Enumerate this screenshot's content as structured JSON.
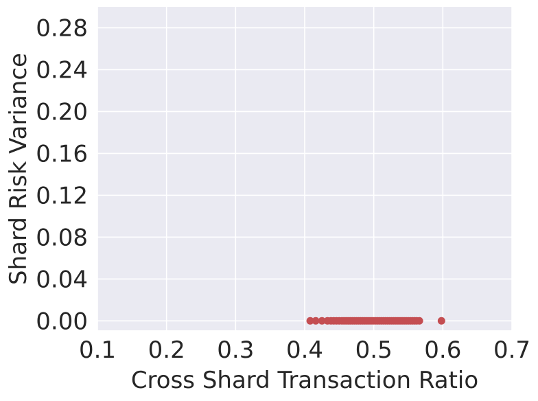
{
  "chart_data": {
    "type": "scatter",
    "xlabel": "Cross Shard Transaction Ratio",
    "ylabel": "Shard Risk Variance",
    "xlim": [
      0.1,
      0.7
    ],
    "ylim": [
      -0.009,
      0.3
    ],
    "xticks": [
      0.1,
      0.2,
      0.3,
      0.4,
      0.5,
      0.6,
      0.7
    ],
    "xtick_labels": [
      "0.1",
      "0.2",
      "0.3",
      "0.4",
      "0.5",
      "0.6",
      "0.7"
    ],
    "yticks": [
      0.0,
      0.04,
      0.08,
      0.12,
      0.16,
      0.2,
      0.24,
      0.28
    ],
    "ytick_labels": [
      "0.00",
      "0.04",
      "0.08",
      "0.12",
      "0.16",
      "0.20",
      "0.24",
      "0.28"
    ],
    "grid": true,
    "colors": {
      "background": "#eaeaf2",
      "grid": "#ffffff",
      "marker": "#c44e52"
    },
    "series": [
      {
        "x": [
          0.408,
          0.416,
          0.425,
          0.433,
          0.438,
          0.442,
          0.446,
          0.45,
          0.454,
          0.457,
          0.46,
          0.463,
          0.466,
          0.469,
          0.472,
          0.475,
          0.478,
          0.481,
          0.484,
          0.487,
          0.49,
          0.493,
          0.496,
          0.499,
          0.502,
          0.505,
          0.508,
          0.511,
          0.514,
          0.517,
          0.52,
          0.523,
          0.526,
          0.529,
          0.532,
          0.535,
          0.538,
          0.541,
          0.544,
          0.547,
          0.55,
          0.553,
          0.556,
          0.559,
          0.562,
          0.566,
          0.598
        ],
        "y": [
          0,
          0,
          0,
          0,
          0,
          0,
          0,
          0,
          0,
          0,
          0,
          0,
          0,
          0,
          0,
          0,
          0,
          0,
          0,
          0,
          0,
          0,
          0,
          0,
          0,
          0,
          0,
          0,
          0,
          0,
          0,
          0,
          0,
          0,
          0,
          0,
          0,
          0,
          0,
          0,
          0,
          0,
          0,
          0,
          0,
          0,
          0
        ]
      }
    ]
  }
}
